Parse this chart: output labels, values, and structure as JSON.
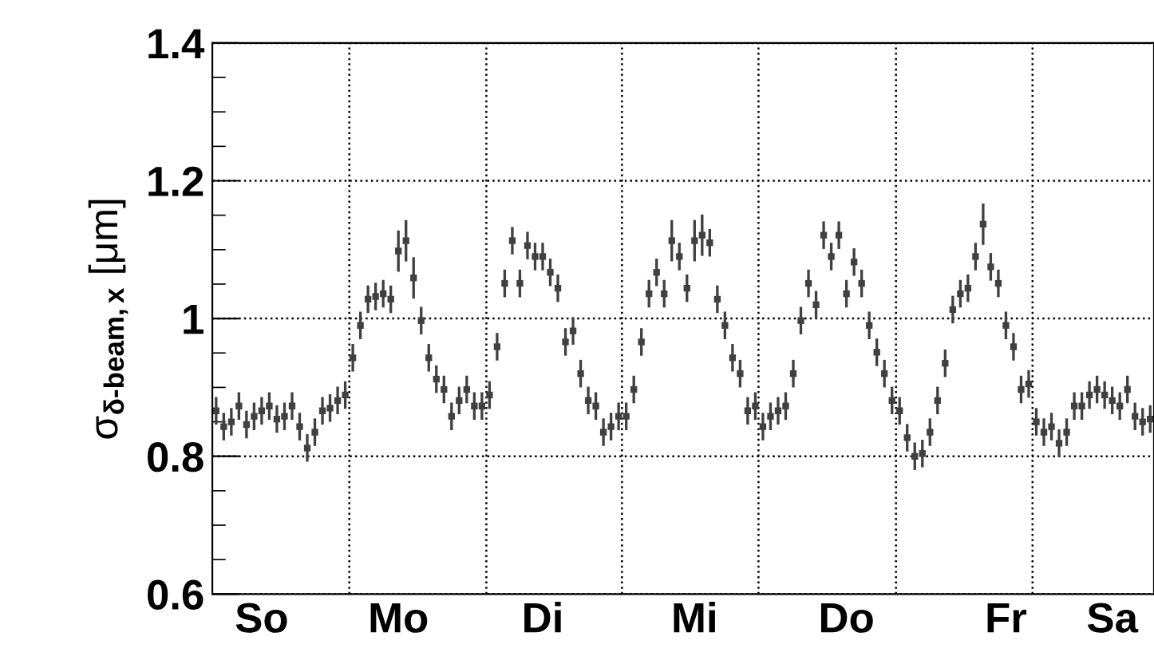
{
  "chart_data": {
    "type": "scatter",
    "ylabel": "σ$_{δ-beam,x}$ [μm]",
    "ylim": [
      0.6,
      1.4
    ],
    "yticks": [
      0.6,
      0.8,
      1,
      1.2,
      1.4
    ],
    "categories": [
      null,
      null,
      null,
      null,
      null,
      null,
      "So",
      null,
      null,
      null,
      null,
      null,
      null,
      null,
      null,
      null,
      null,
      null,
      null,
      null,
      null,
      null,
      null,
      null,
      "Mo",
      null,
      null,
      null,
      null,
      null,
      null,
      null,
      null,
      null,
      null,
      null,
      null,
      null,
      null,
      null,
      null,
      null,
      null,
      "Di",
      null,
      null,
      null,
      null,
      null,
      null,
      null,
      null,
      null,
      null,
      null,
      null,
      null,
      null,
      null,
      null,
      null,
      null,
      null,
      "Mi",
      null,
      null,
      null,
      null,
      null,
      null,
      null,
      null,
      null,
      null,
      null,
      null,
      null,
      null,
      null,
      null,
      null,
      null,
      null,
      "Do",
      null,
      null,
      null,
      null,
      null,
      null,
      null,
      null,
      null,
      null,
      null,
      null,
      null,
      null,
      null,
      null,
      null,
      null,
      null,
      null,
      "Fr",
      null,
      null,
      null,
      null,
      null,
      null,
      null,
      null,
      null,
      null,
      null,
      null,
      null,
      "Sa",
      null,
      null,
      null,
      null,
      null
    ],
    "grid": "y",
    "line_style": "dotted",
    "marker": "square",
    "series": [
      {
        "color": "#404040",
        "values": [
          0.866,
          0.843,
          0.85,
          0.873,
          0.846,
          0.858,
          0.866,
          0.873,
          0.854,
          0.858,
          0.873,
          0.843,
          0.812,
          0.835,
          0.866,
          0.87,
          0.881,
          0.889,
          0.943,
          0.99,
          1.028,
          1.032,
          1.036,
          1.028,
          1.098,
          1.113,
          1.059,
          0.997,
          0.943,
          0.912,
          0.897,
          0.858,
          0.881,
          0.897,
          0.873,
          0.873,
          0.889,
          0.959,
          1.051,
          1.113,
          1.051,
          1.106,
          1.09,
          1.09,
          1.067,
          1.044,
          0.966,
          0.982,
          0.92,
          0.881,
          0.873,
          0.835,
          0.843,
          0.858,
          0.858,
          0.897,
          0.966,
          1.036,
          1.067,
          1.036,
          1.113,
          1.09,
          1.044,
          1.113,
          1.121,
          1.11,
          1.028,
          0.99,
          0.943,
          0.92,
          0.866,
          0.873,
          0.843,
          0.858,
          0.866,
          0.873,
          0.92,
          0.997,
          1.051,
          1.02,
          1.121,
          1.09,
          1.121,
          1.036,
          1.082,
          1.051,
          0.99,
          0.951,
          0.92,
          0.881,
          0.866,
          0.827,
          0.8,
          0.804,
          0.835,
          0.881,
          0.935,
          1.013,
          1.036,
          1.044,
          1.09,
          1.137,
          1.075,
          1.051,
          0.99,
          0.959,
          0.897,
          0.905,
          0.85,
          0.835,
          0.843,
          0.819,
          0.835,
          0.873,
          0.873,
          0.889,
          0.897,
          0.889,
          0.881,
          0.873,
          0.897,
          0.858,
          0.85,
          0.854
        ],
        "errors": [
          0.02,
          0.02,
          0.02,
          0.02,
          0.02,
          0.02,
          0.02,
          0.02,
          0.02,
          0.02,
          0.02,
          0.02,
          0.02,
          0.02,
          0.02,
          0.02,
          0.02,
          0.02,
          0.02,
          0.02,
          0.02,
          0.02,
          0.02,
          0.02,
          0.03,
          0.03,
          0.03,
          0.02,
          0.02,
          0.02,
          0.02,
          0.02,
          0.02,
          0.02,
          0.02,
          0.02,
          0.02,
          0.02,
          0.02,
          0.02,
          0.02,
          0.02,
          0.02,
          0.02,
          0.02,
          0.02,
          0.02,
          0.02,
          0.02,
          0.02,
          0.02,
          0.02,
          0.02,
          0.02,
          0.02,
          0.02,
          0.02,
          0.02,
          0.02,
          0.02,
          0.03,
          0.02,
          0.02,
          0.03,
          0.03,
          0.02,
          0.02,
          0.02,
          0.02,
          0.02,
          0.02,
          0.02,
          0.02,
          0.02,
          0.02,
          0.02,
          0.02,
          0.02,
          0.02,
          0.02,
          0.02,
          0.02,
          0.02,
          0.02,
          0.02,
          0.02,
          0.02,
          0.02,
          0.02,
          0.02,
          0.02,
          0.02,
          0.02,
          0.02,
          0.02,
          0.02,
          0.02,
          0.02,
          0.02,
          0.02,
          0.02,
          0.03,
          0.02,
          0.02,
          0.02,
          0.02,
          0.02,
          0.02,
          0.02,
          0.02,
          0.02,
          0.02,
          0.02,
          0.02,
          0.02,
          0.02,
          0.02,
          0.02,
          0.02,
          0.02,
          0.02,
          0.02,
          0.02,
          0.02
        ]
      }
    ]
  }
}
